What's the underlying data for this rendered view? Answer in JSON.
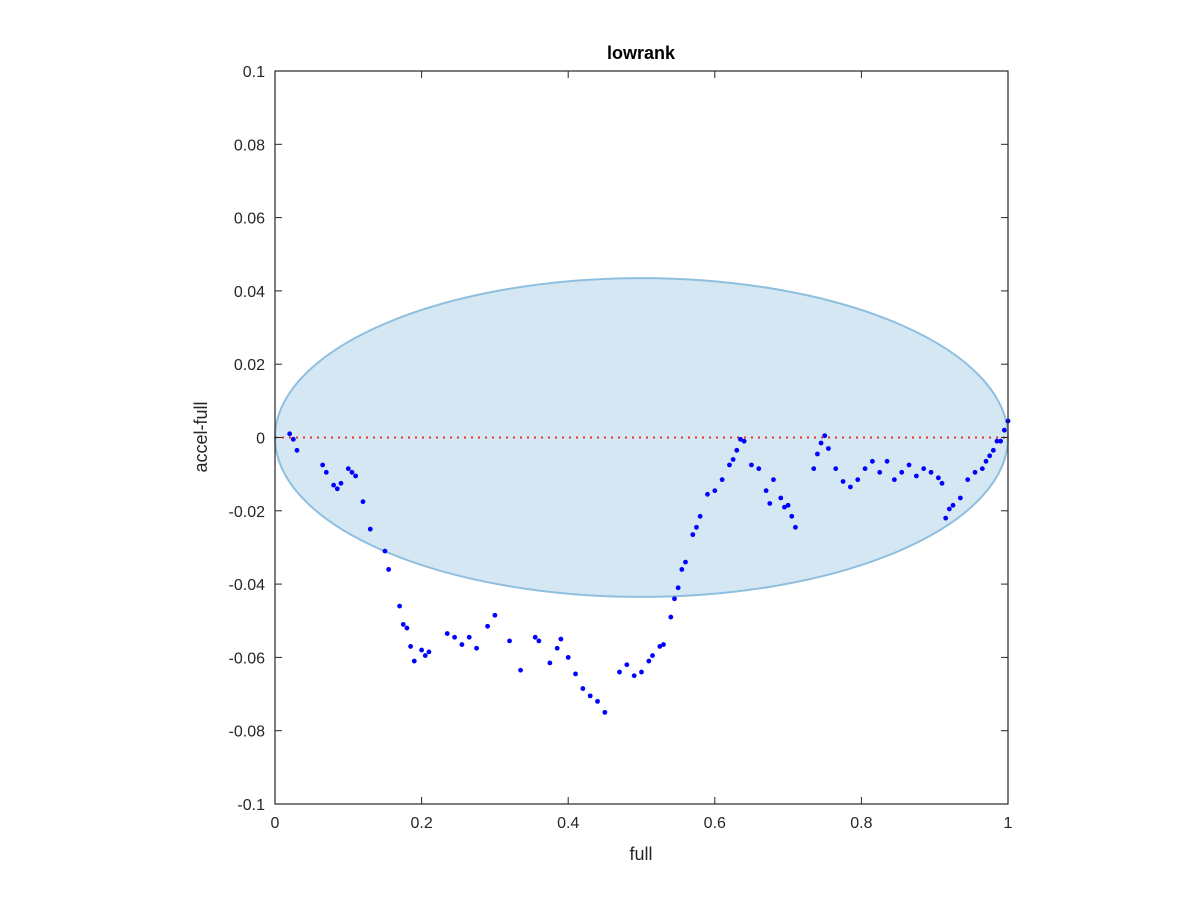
{
  "chart_data": {
    "type": "scatter",
    "title": "lowrank",
    "xlabel": "full",
    "ylabel": "accel-full",
    "xlim": [
      0,
      1
    ],
    "ylim": [
      -0.1,
      0.1
    ],
    "x_ticks": [
      0,
      0.2,
      0.4,
      0.6,
      0.8,
      1
    ],
    "x_tick_labels": [
      "0",
      "0.2",
      "0.4",
      "0.6",
      "0.8",
      "1"
    ],
    "y_ticks": [
      -0.1,
      -0.08,
      -0.06,
      -0.04,
      -0.02,
      0,
      0.02,
      0.04,
      0.06,
      0.08,
      0.1
    ],
    "y_tick_labels": [
      "-0.1",
      "-0.08",
      "-0.06",
      "-0.04",
      "-0.02",
      "0",
      "0.02",
      "0.04",
      "0.06",
      "0.08",
      "0.1"
    ],
    "grid": false,
    "reference_line": {
      "y": 0,
      "style": "dotted",
      "color": "#e8312a"
    },
    "ellipse": {
      "cx": 0.5,
      "cy": 0,
      "rx": 0.5,
      "ry": 0.0435,
      "fill": "#d6e7f4",
      "stroke": "#8fbfdf"
    },
    "series": [
      {
        "color": "#0000ff",
        "x": [
          0.02,
          0.025,
          0.03,
          0.065,
          0.07,
          0.08,
          0.085,
          0.09,
          0.1,
          0.105,
          0.11,
          0.12,
          0.13,
          0.15,
          0.155,
          0.17,
          0.175,
          0.18,
          0.185,
          0.19,
          0.2,
          0.205,
          0.21,
          0.235,
          0.245,
          0.255,
          0.265,
          0.275,
          0.29,
          0.3,
          0.32,
          0.335,
          0.355,
          0.36,
          0.375,
          0.385,
          0.39,
          0.4,
          0.41,
          0.42,
          0.43,
          0.44,
          0.45,
          0.47,
          0.48,
          0.49,
          0.5,
          0.51,
          0.515,
          0.525,
          0.53,
          0.54,
          0.545,
          0.55,
          0.555,
          0.56,
          0.57,
          0.575,
          0.58,
          0.59,
          0.6,
          0.61,
          0.62,
          0.625,
          0.63,
          0.635,
          0.64,
          0.65,
          0.66,
          0.67,
          0.675,
          0.68,
          0.69,
          0.695,
          0.7,
          0.705,
          0.71,
          0.735,
          0.74,
          0.745,
          0.75,
          0.755,
          0.765,
          0.775,
          0.785,
          0.795,
          0.805,
          0.815,
          0.825,
          0.835,
          0.845,
          0.855,
          0.865,
          0.875,
          0.885,
          0.895,
          0.905,
          0.91,
          0.915,
          0.92,
          0.925,
          0.935,
          0.945,
          0.955,
          0.965,
          0.97,
          0.975,
          0.98,
          0.985,
          0.99,
          0.995,
          1.0
        ],
        "y": [
          0.001,
          -0.0005,
          -0.0035,
          -0.0075,
          -0.0095,
          -0.013,
          -0.014,
          -0.0125,
          -0.0085,
          -0.0095,
          -0.0105,
          -0.0175,
          -0.025,
          -0.031,
          -0.036,
          -0.046,
          -0.051,
          -0.052,
          -0.057,
          -0.061,
          -0.058,
          -0.0595,
          -0.0585,
          -0.0535,
          -0.0545,
          -0.0565,
          -0.0545,
          -0.0575,
          -0.0515,
          -0.0485,
          -0.0555,
          -0.0635,
          -0.0545,
          -0.0555,
          -0.0615,
          -0.0575,
          -0.055,
          -0.06,
          -0.0645,
          -0.0685,
          -0.0705,
          -0.072,
          -0.075,
          -0.064,
          -0.062,
          -0.065,
          -0.064,
          -0.061,
          -0.0595,
          -0.057,
          -0.0565,
          -0.049,
          -0.044,
          -0.041,
          -0.036,
          -0.034,
          -0.0265,
          -0.0245,
          -0.0215,
          -0.0155,
          -0.0145,
          -0.0115,
          -0.0075,
          -0.006,
          -0.0035,
          -0.0005,
          -0.001,
          -0.0075,
          -0.0085,
          -0.0145,
          -0.018,
          -0.0115,
          -0.0165,
          -0.019,
          -0.0185,
          -0.0215,
          -0.0245,
          -0.0085,
          -0.0045,
          -0.0015,
          0.0005,
          -0.003,
          -0.0085,
          -0.012,
          -0.0135,
          -0.0115,
          -0.0085,
          -0.0065,
          -0.0095,
          -0.0065,
          -0.0115,
          -0.0095,
          -0.0075,
          -0.0105,
          -0.0085,
          -0.0095,
          -0.011,
          -0.0125,
          -0.022,
          -0.0195,
          -0.0185,
          -0.0165,
          -0.0115,
          -0.0095,
          -0.0085,
          -0.0065,
          -0.005,
          -0.0035,
          -0.001,
          -0.001,
          0.002,
          0.0045
        ]
      }
    ]
  }
}
